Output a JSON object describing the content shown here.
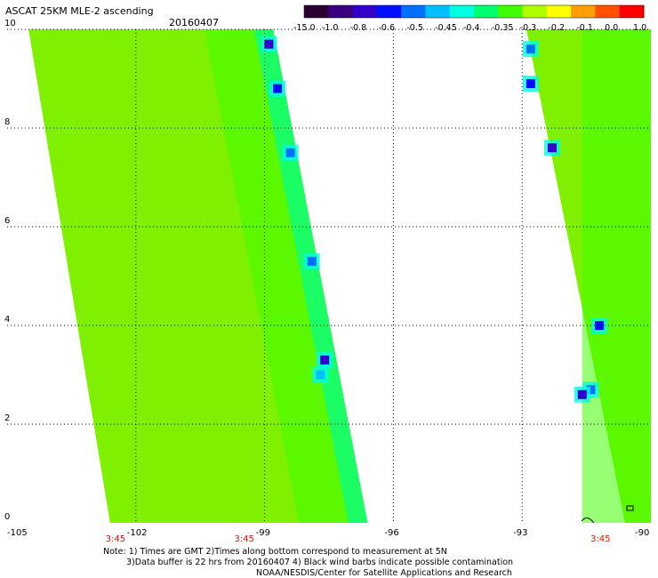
{
  "title": "ASCAT 25KM MLE-2 ascending",
  "date": "20160407",
  "colorbar": {
    "labels": [
      "-15.0",
      "-1.0",
      "-0.8",
      "-0.6",
      "-0.5",
      "-0.45",
      "-0.4",
      "-0.35",
      "-0.3",
      "-0.2",
      "-0.1",
      "0.0",
      "1.0"
    ],
    "colors": [
      "#2a0030",
      "#3a0080",
      "#3300cc",
      "#0010ff",
      "#0070ff",
      "#00c0ff",
      "#00ffe0",
      "#00ff70",
      "#40ff00",
      "#b0ff00",
      "#ffff00",
      "#ffa000",
      "#ff5000",
      "#ff0000"
    ]
  },
  "notes": [
    "Note: 1) Times are GMT 2)Times along bottom correspond to measurement at 5N",
    "3)Data buffer is 22 hrs from 20160407 4) Black wind barbs indicate possible contamination",
    "NOAA/NESDIS/Center for Satellite Applications and Research"
  ],
  "chart_data": {
    "type": "heatmap",
    "title": "ASCAT 25KM MLE-2 ascending",
    "date": "20160407",
    "x_ticks": [
      "-105",
      "-102",
      "-99",
      "-96",
      "-93",
      "-90"
    ],
    "y_ticks": [
      "0",
      "2",
      "4",
      "6",
      "8",
      "10"
    ],
    "xlim": [
      -105,
      -90
    ],
    "ylim": [
      0,
      10
    ],
    "grid": true,
    "time_labels": [
      {
        "lon": -102.5,
        "label": "3:45"
      },
      {
        "lon": -99.5,
        "label": "3:45"
      },
      {
        "lon": -91.2,
        "label": "3:45"
      }
    ],
    "swaths": [
      {
        "name": "swath-1",
        "west_edge": [
          [
            0,
            -102.6
          ],
          [
            10,
            -104.5
          ]
        ],
        "east_edge": [
          [
            0,
            -96.6
          ],
          [
            10,
            -98.8
          ]
        ]
      },
      {
        "name": "swath-2",
        "west_edge": [
          [
            0,
            -90.6
          ],
          [
            10,
            -92.9
          ]
        ],
        "east_edge": [
          [
            0,
            -90.0
          ],
          [
            10,
            -90.0
          ]
        ]
      }
    ],
    "typical_value": -0.3,
    "low_value_spots": [
      {
        "lon": -98.9,
        "lat": 9.7,
        "value": -0.8
      },
      {
        "lon": -98.7,
        "lat": 8.8,
        "value": -0.6
      },
      {
        "lon": -98.4,
        "lat": 7.5,
        "value": -0.5
      },
      {
        "lon": -97.9,
        "lat": 5.3,
        "value": -0.5
      },
      {
        "lon": -97.7,
        "lat": 3.0,
        "value": -0.45
      },
      {
        "lon": -97.6,
        "lat": 3.3,
        "value": -0.8
      },
      {
        "lon": -92.8,
        "lat": 9.6,
        "value": -0.5
      },
      {
        "lon": -92.8,
        "lat": 8.9,
        "value": -0.6
      },
      {
        "lon": -92.3,
        "lat": 7.6,
        "value": -0.8
      },
      {
        "lon": -91.2,
        "lat": 4.0,
        "value": -0.6
      },
      {
        "lon": -91.4,
        "lat": 2.7,
        "value": -0.5
      },
      {
        "lon": -91.6,
        "lat": 2.6,
        "value": -1.0
      }
    ]
  }
}
